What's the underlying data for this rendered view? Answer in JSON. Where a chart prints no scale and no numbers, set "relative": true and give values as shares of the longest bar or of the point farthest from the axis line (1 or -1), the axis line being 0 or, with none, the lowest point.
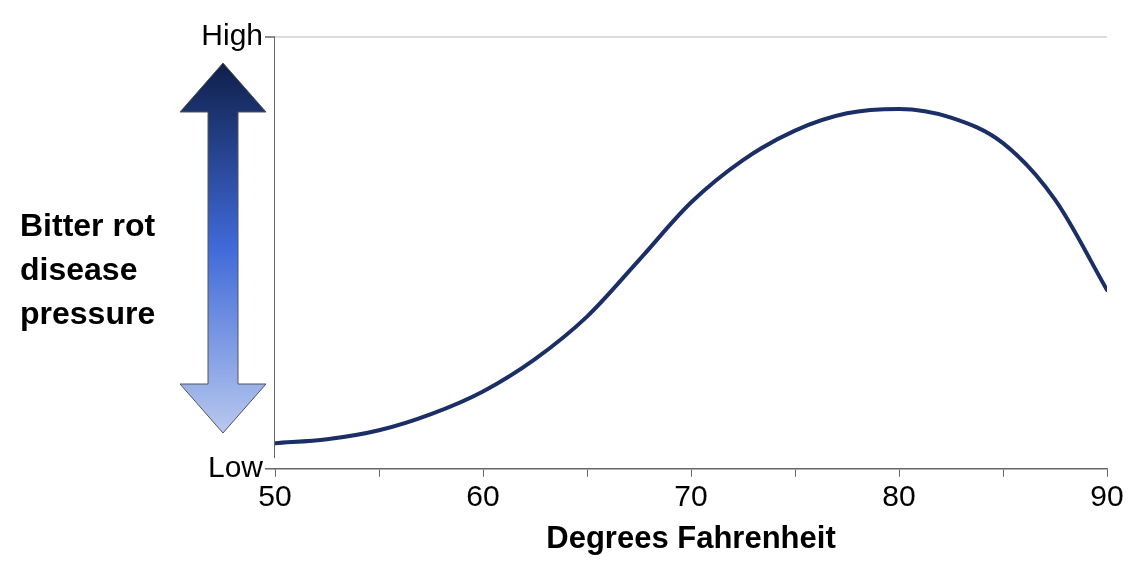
{
  "chart_data": {
    "type": "line",
    "xlabel": "Degrees Fahrenheit",
    "ylabel": "Bitter rot disease pressure",
    "annotations": [
      "Low",
      "High"
    ],
    "x": [
      50,
      52.5,
      55,
      57.5,
      60,
      62.5,
      65,
      67.5,
      70,
      72.5,
      75,
      77.5,
      80,
      82.5,
      85,
      87.5,
      90
    ],
    "series": [
      {
        "color": "#1b2f66",
        "values": [
          0.071,
          0.082,
          0.107,
          0.152,
          0.215,
          0.305,
          0.423,
          0.58,
          0.74,
          0.858,
          0.94,
          0.988,
          1,
          0.976,
          0.905,
          0.748,
          0.497
        ]
      }
    ],
    "relative": true,
    "xlim": [
      50,
      90
    ],
    "xticks": [
      50,
      {
        "value": 55,
        "label": null
      },
      60,
      {
        "value": 65,
        "label": null
      },
      70,
      {
        "value": 75,
        "label": null
      },
      80,
      {
        "value": 85,
        "label": null
      },
      90
    ],
    "legend": false,
    "marker": "none",
    "line_style": "solid"
  }
}
